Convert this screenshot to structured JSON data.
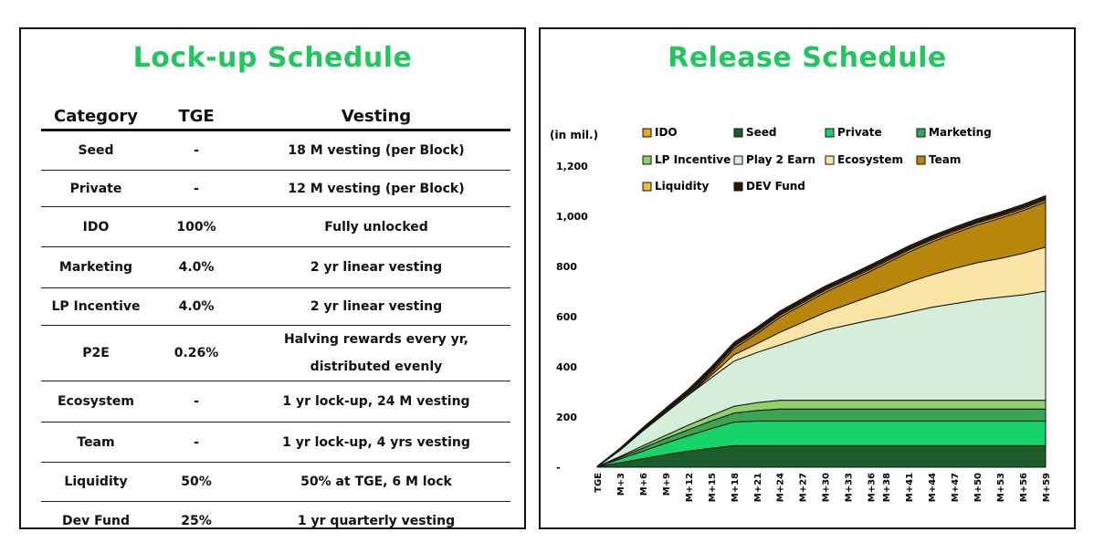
{
  "lockup": {
    "title": "Lock-up Schedule",
    "headers": [
      "Category",
      "TGE",
      "Vesting"
    ],
    "rows": [
      {
        "category": "Seed",
        "tge": "-",
        "vesting": [
          "18 M vesting (per Block)"
        ]
      },
      {
        "category": "Private",
        "tge": "-",
        "vesting": [
          "12 M vesting (per Block)"
        ]
      },
      {
        "category": "IDO",
        "tge": "100%",
        "vesting": [
          "Fully unlocked"
        ]
      },
      {
        "category": "Marketing",
        "tge": "4.0%",
        "vesting": [
          "2 yr linear vesting"
        ]
      },
      {
        "category": "LP Incentive",
        "tge": "4.0%",
        "vesting": [
          "2 yr linear vesting"
        ]
      },
      {
        "category": "P2E",
        "tge": "0.26%",
        "vesting": [
          "Halving rewards every yr,",
          "distributed evenly"
        ]
      },
      {
        "category": "Ecosystem",
        "tge": "-",
        "vesting": [
          "1 yr lock-up, 24 M vesting"
        ]
      },
      {
        "category": "Team",
        "tge": "-",
        "vesting": [
          "1 yr lock-up, 4 yrs vesting"
        ]
      },
      {
        "category": "Liquidity",
        "tge": "50%",
        "vesting": [
          "50% at TGE, 6 M lock"
        ]
      },
      {
        "category": "Dev Fund",
        "tge": "25%",
        "vesting": [
          "1 yr quarterly vesting"
        ]
      }
    ]
  },
  "chart_data": {
    "type": "area",
    "title": "Release Schedule",
    "ylabel": "(in mil.)",
    "ylim": [
      0,
      1200
    ],
    "yticks": [
      "-",
      "200",
      "400",
      "600",
      "800",
      "1,000",
      "1,200"
    ],
    "ytick_values": [
      0,
      200,
      400,
      600,
      800,
      1000,
      1200
    ],
    "x": [
      "TGE",
      "M+3",
      "M+6",
      "M+9",
      "M+12",
      "M+15",
      "M+18",
      "M+21",
      "M+24",
      "M+27",
      "M+30",
      "M+33",
      "M+36",
      "M+38",
      "M+41",
      "M+44",
      "M+47",
      "M+50",
      "M+53",
      "M+56",
      "M+59"
    ],
    "x_months": [
      0,
      3,
      6,
      9,
      12,
      15,
      18,
      21,
      24,
      27,
      30,
      33,
      36,
      38,
      41,
      44,
      47,
      50,
      53,
      56,
      59
    ],
    "legend_placement": "top",
    "stacked": true,
    "series": [
      {
        "name": "Seed",
        "color": "#1b5e2b",
        "values": [
          2,
          18,
          34,
          50,
          64,
          76,
          86,
          86,
          86,
          86,
          86,
          86,
          86,
          86,
          86,
          86,
          86,
          86,
          86,
          86,
          86
        ]
      },
      {
        "name": "Private",
        "color": "#17d46a",
        "values": [
          0,
          15,
          30,
          46,
          62,
          78,
          94,
          98,
          98,
          98,
          98,
          98,
          98,
          98,
          98,
          98,
          98,
          98,
          98,
          98,
          98
        ]
      },
      {
        "name": "Marketing",
        "color": "#3aa655",
        "values": [
          0,
          6,
          12,
          18,
          24,
          30,
          36,
          42,
          48,
          48,
          48,
          48,
          48,
          48,
          48,
          48,
          48,
          48,
          48,
          48,
          48
        ]
      },
      {
        "name": "LP Incentive",
        "color": "#8fd16a",
        "values": [
          0,
          4,
          9,
          13,
          18,
          22,
          27,
          31,
          35,
          35,
          35,
          35,
          35,
          35,
          35,
          35,
          35,
          35,
          35,
          35,
          35
        ]
      },
      {
        "name": "Play 2 Earn",
        "color": "#d4eed9",
        "values": [
          0,
          25,
          60,
          90,
          120,
          150,
          180,
          200,
          220,
          250,
          280,
          300,
          320,
          330,
          350,
          370,
          385,
          400,
          410,
          420,
          435
        ]
      },
      {
        "name": "Ecosystem",
        "color": "#fbe5a6",
        "values": [
          0,
          0,
          0,
          0,
          0,
          10,
          25,
          35,
          50,
          60,
          70,
          82,
          95,
          105,
          120,
          130,
          140,
          148,
          155,
          165,
          175
        ]
      },
      {
        "name": "Team",
        "color": "#b8860b",
        "values": [
          0,
          0,
          0,
          0,
          0,
          10,
          25,
          40,
          60,
          70,
          80,
          90,
          100,
          110,
          120,
          130,
          140,
          150,
          160,
          170,
          180
        ]
      },
      {
        "name": "Liquidity",
        "color": "#f5b83a",
        "values": [
          1,
          3,
          4,
          5,
          6,
          7,
          8,
          8,
          8,
          8,
          8,
          8,
          8,
          8,
          8,
          8,
          8,
          8,
          8,
          8,
          8
        ]
      },
      {
        "name": "IDO",
        "color": "#e0a82e",
        "values": [
          1,
          2,
          3,
          4,
          5,
          5,
          5,
          5,
          5,
          5,
          5,
          5,
          5,
          5,
          5,
          5,
          5,
          5,
          5,
          5,
          5
        ]
      },
      {
        "name": "DEV Fund",
        "color": "#2a1a0a",
        "values": [
          0,
          3,
          6,
          9,
          12,
          12,
          12,
          12,
          12,
          12,
          12,
          12,
          12,
          12,
          12,
          12,
          12,
          12,
          12,
          12,
          12
        ]
      }
    ],
    "legend_order": [
      "IDO",
      "Seed",
      "Private",
      "Marketing",
      "LP Incentive",
      "Play 2 Earn",
      "Ecosystem",
      "Team",
      "Liquidity",
      "DEV Fund"
    ]
  }
}
